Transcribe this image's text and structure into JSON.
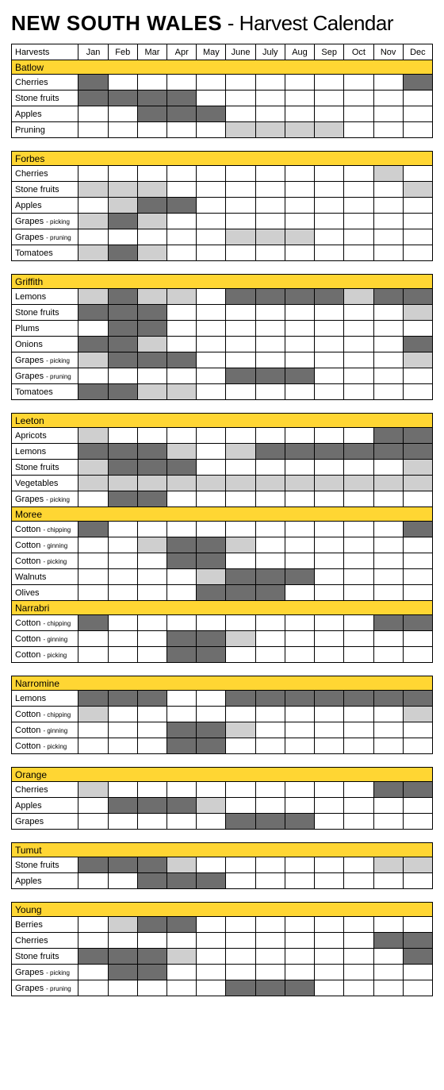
{
  "title_bold": "NEW SOUTH WALES",
  "title_rest": " - Harvest Calendar",
  "harvests_label": "Harvests",
  "months": [
    "Jan",
    "Feb",
    "Mar",
    "Apr",
    "May",
    "June",
    "July",
    "Aug",
    "Sep",
    "Oct",
    "Nov",
    "Dec"
  ],
  "colors": {
    "region_bg": "#ffd633",
    "dark": "#6e6e6e",
    "light": "#cfcfcf",
    "border": "#000000",
    "background": "#ffffff"
  },
  "tables": [
    {
      "show_header": true,
      "regions": [
        {
          "name": "Batlow",
          "rows": [
            {
              "crop": "Cherries",
              "sub": "",
              "cells": [
                "dark",
                "",
                "",
                "",
                "",
                "",
                "",
                "",
                "",
                "",
                "",
                "dark"
              ]
            },
            {
              "crop": "Stone fruits",
              "sub": "",
              "cells": [
                "dark",
                "dark",
                "dark",
                "dark",
                "",
                "",
                "",
                "",
                "",
                "",
                "",
                ""
              ]
            },
            {
              "crop": "Apples",
              "sub": "",
              "cells": [
                "",
                "",
                "dark",
                "dark",
                "dark",
                "",
                "",
                "",
                "",
                "",
                "",
                ""
              ]
            },
            {
              "crop": "Pruning",
              "sub": "",
              "cells": [
                "",
                "",
                "",
                "",
                "",
                "light",
                "light",
                "light",
                "light",
                "",
                "",
                ""
              ]
            }
          ]
        }
      ]
    },
    {
      "show_header": false,
      "regions": [
        {
          "name": "Forbes",
          "rows": [
            {
              "crop": "Cherries",
              "sub": "",
              "cells": [
                "",
                "",
                "",
                "",
                "",
                "",
                "",
                "",
                "",
                "",
                "light",
                ""
              ]
            },
            {
              "crop": "Stone fruits",
              "sub": "",
              "cells": [
                "light",
                "light",
                "light",
                "",
                "",
                "",
                "",
                "",
                "",
                "",
                "",
                "light"
              ]
            },
            {
              "crop": "Apples",
              "sub": "",
              "cells": [
                "",
                "light",
                "dark",
                "dark",
                "",
                "",
                "",
                "",
                "",
                "",
                "",
                ""
              ]
            },
            {
              "crop": "Grapes",
              "sub": "- picking",
              "cells": [
                "light",
                "dark",
                "light",
                "",
                "",
                "",
                "",
                "",
                "",
                "",
                "",
                ""
              ]
            },
            {
              "crop": "Grapes",
              "sub": "- pruning",
              "cells": [
                "",
                "",
                "",
                "",
                "",
                "light",
                "light",
                "light",
                "",
                "",
                "",
                ""
              ]
            },
            {
              "crop": "Tomatoes",
              "sub": "",
              "cells": [
                "light",
                "dark",
                "light",
                "",
                "",
                "",
                "",
                "",
                "",
                "",
                "",
                ""
              ]
            }
          ]
        }
      ]
    },
    {
      "show_header": false,
      "regions": [
        {
          "name": "Griffith",
          "rows": [
            {
              "crop": "Lemons",
              "sub": "",
              "cells": [
                "light",
                "dark",
                "light",
                "light",
                "",
                "dark",
                "dark",
                "dark",
                "dark",
                "light",
                "dark",
                "dark"
              ]
            },
            {
              "crop": "Stone fruits",
              "sub": "",
              "cells": [
                "dark",
                "dark",
                "dark",
                "",
                "",
                "",
                "",
                "",
                "",
                "",
                "",
                "light"
              ]
            },
            {
              "crop": "Plums",
              "sub": "",
              "cells": [
                "",
                "dark",
                "dark",
                "",
                "",
                "",
                "",
                "",
                "",
                "",
                "",
                ""
              ]
            },
            {
              "crop": "Onions",
              "sub": "",
              "cells": [
                "dark",
                "dark",
                "light",
                "",
                "",
                "",
                "",
                "",
                "",
                "",
                "",
                "dark"
              ]
            },
            {
              "crop": "Grapes",
              "sub": "- picking",
              "cells": [
                "light",
                "dark",
                "dark",
                "dark",
                "",
                "",
                "",
                "",
                "",
                "",
                "",
                "light"
              ]
            },
            {
              "crop": "Grapes",
              "sub": "- pruning",
              "cells": [
                "",
                "",
                "",
                "",
                "",
                "dark",
                "dark",
                "dark",
                "",
                "",
                "",
                ""
              ]
            },
            {
              "crop": "Tomatoes",
              "sub": "",
              "cells": [
                "dark",
                "dark",
                "light",
                "light",
                "",
                "",
                "",
                "",
                "",
                "",
                "",
                ""
              ]
            }
          ]
        }
      ]
    },
    {
      "show_header": false,
      "regions": [
        {
          "name": "Leeton",
          "rows": [
            {
              "crop": "Apricots",
              "sub": "",
              "cells": [
                "light",
                "",
                "",
                "",
                "",
                "",
                "",
                "",
                "",
                "",
                "dark",
                "dark"
              ]
            },
            {
              "crop": "Lemons",
              "sub": "",
              "cells": [
                "dark",
                "dark",
                "dark",
                "light",
                "",
                "light",
                "dark",
                "dark",
                "dark",
                "dark",
                "dark",
                "dark"
              ]
            },
            {
              "crop": "Stone fruits",
              "sub": "",
              "cells": [
                "light",
                "dark",
                "dark",
                "dark",
                "",
                "",
                "",
                "",
                "",
                "",
                "",
                "light"
              ]
            },
            {
              "crop": "Vegetables",
              "sub": "",
              "cells": [
                "light",
                "light",
                "light",
                "light",
                "light",
                "light",
                "light",
                "light",
                "light",
                "light",
                "light",
                "light"
              ]
            },
            {
              "crop": "Grapes",
              "sub": "- picking",
              "cells": [
                "",
                "dark",
                "dark",
                "",
                "",
                "",
                "",
                "",
                "",
                "",
                "",
                ""
              ]
            }
          ]
        },
        {
          "name": "Moree",
          "rows": [
            {
              "crop": "Cotton",
              "sub": "- chipping",
              "cells": [
                "dark",
                "",
                "",
                "",
                "",
                "",
                "",
                "",
                "",
                "",
                "",
                "dark"
              ]
            },
            {
              "crop": "Cotton",
              "sub": "- ginning",
              "cells": [
                "",
                "",
                "light",
                "dark",
                "dark",
                "light",
                "",
                "",
                "",
                "",
                "",
                ""
              ]
            },
            {
              "crop": "Cotton",
              "sub": "- picking",
              "cells": [
                "",
                "",
                "",
                "dark",
                "dark",
                "",
                "",
                "",
                "",
                "",
                "",
                ""
              ]
            },
            {
              "crop": "Walnuts",
              "sub": "",
              "cells": [
                "",
                "",
                "",
                "",
                "light",
                "dark",
                "dark",
                "dark",
                "",
                "",
                "",
                ""
              ]
            },
            {
              "crop": "Olives",
              "sub": "",
              "cells": [
                "",
                "",
                "",
                "",
                "dark",
                "dark",
                "dark",
                "",
                "",
                "",
                "",
                ""
              ]
            }
          ]
        },
        {
          "name": "Narrabri",
          "rows": [
            {
              "crop": "Cotton",
              "sub": "- chipping",
              "cells": [
                "dark",
                "",
                "",
                "",
                "",
                "",
                "",
                "",
                "",
                "",
                "dark",
                "dark"
              ]
            },
            {
              "crop": "Cotton",
              "sub": "- ginning",
              "cells": [
                "",
                "",
                "",
                "dark",
                "dark",
                "light",
                "",
                "",
                "",
                "",
                "",
                ""
              ]
            },
            {
              "crop": "Cotton",
              "sub": "- picking",
              "cells": [
                "",
                "",
                "",
                "dark",
                "dark",
                "",
                "",
                "",
                "",
                "",
                "",
                ""
              ]
            }
          ]
        }
      ]
    },
    {
      "show_header": false,
      "regions": [
        {
          "name": "Narromine",
          "rows": [
            {
              "crop": "Lemons",
              "sub": "",
              "cells": [
                "dark",
                "dark",
                "dark",
                "",
                "",
                "dark",
                "dark",
                "dark",
                "dark",
                "dark",
                "dark",
                "dark"
              ]
            },
            {
              "crop": "Cotton",
              "sub": "- chipping",
              "cells": [
                "light",
                "",
                "",
                "",
                "",
                "",
                "",
                "",
                "",
                "",
                "",
                "light"
              ]
            },
            {
              "crop": "Cotton",
              "sub": "- ginning",
              "cells": [
                "",
                "",
                "",
                "dark",
                "dark",
                "light",
                "",
                "",
                "",
                "",
                "",
                ""
              ]
            },
            {
              "crop": "Cotton",
              "sub": "- picking",
              "cells": [
                "",
                "",
                "",
                "dark",
                "dark",
                "",
                "",
                "",
                "",
                "",
                "",
                ""
              ]
            }
          ]
        }
      ]
    },
    {
      "show_header": false,
      "regions": [
        {
          "name": "Orange",
          "rows": [
            {
              "crop": "Cherries",
              "sub": "",
              "cells": [
                "light",
                "",
                "",
                "",
                "",
                "",
                "",
                "",
                "",
                "",
                "dark",
                "dark"
              ]
            },
            {
              "crop": "Apples",
              "sub": "",
              "cells": [
                "",
                "dark",
                "dark",
                "dark",
                "light",
                "",
                "",
                "",
                "",
                "",
                "",
                ""
              ]
            },
            {
              "crop": "Grapes",
              "sub": "",
              "cells": [
                "",
                "",
                "",
                "",
                "",
                "dark",
                "dark",
                "dark",
                "",
                "",
                "",
                ""
              ]
            }
          ]
        }
      ]
    },
    {
      "show_header": false,
      "regions": [
        {
          "name": "Tumut",
          "rows": [
            {
              "crop": "Stone fruits",
              "sub": "",
              "cells": [
                "dark",
                "dark",
                "dark",
                "light",
                "",
                "",
                "",
                "",
                "",
                "",
                "light",
                "light"
              ]
            },
            {
              "crop": "Apples",
              "sub": "",
              "cells": [
                "",
                "",
                "dark",
                "dark",
                "dark",
                "",
                "",
                "",
                "",
                "",
                "",
                ""
              ]
            }
          ]
        }
      ]
    },
    {
      "show_header": false,
      "regions": [
        {
          "name": "Young",
          "rows": [
            {
              "crop": "Berries",
              "sub": "",
              "cells": [
                "",
                "light",
                "dark",
                "dark",
                "",
                "",
                "",
                "",
                "",
                "",
                "",
                ""
              ]
            },
            {
              "crop": "Cherries",
              "sub": "",
              "cells": [
                "",
                "",
                "",
                "",
                "",
                "",
                "",
                "",
                "",
                "",
                "dark",
                "dark"
              ]
            },
            {
              "crop": "Stone fruits",
              "sub": "",
              "cells": [
                "dark",
                "dark",
                "dark",
                "light",
                "",
                "",
                "",
                "",
                "",
                "",
                "",
                "dark"
              ]
            },
            {
              "crop": "Grapes",
              "sub": "- picking",
              "cells": [
                "",
                "dark",
                "dark",
                "",
                "",
                "",
                "",
                "",
                "",
                "",
                "",
                ""
              ]
            },
            {
              "crop": "Grapes",
              "sub": "- pruning",
              "cells": [
                "",
                "",
                "",
                "",
                "",
                "dark",
                "dark",
                "dark",
                "",
                "",
                "",
                ""
              ]
            }
          ]
        }
      ]
    }
  ]
}
